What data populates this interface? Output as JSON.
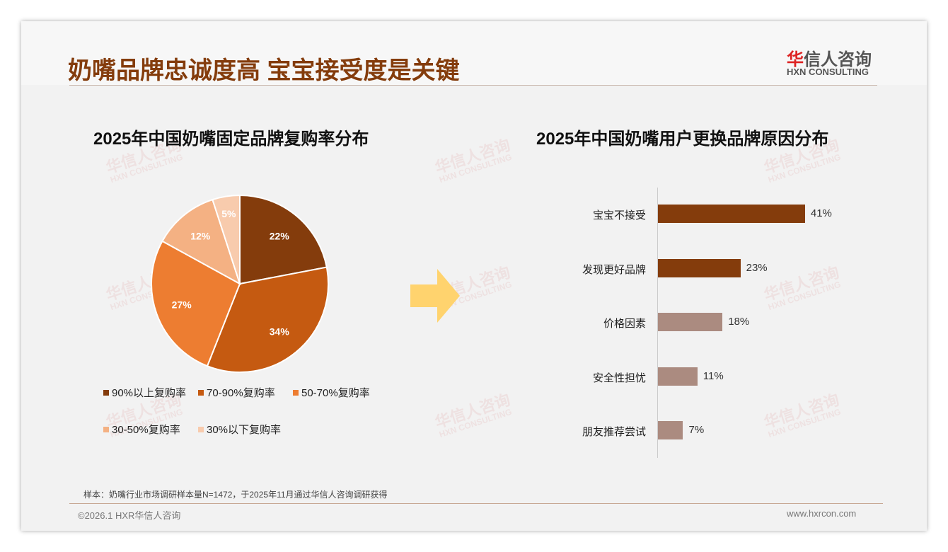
{
  "header": {
    "title": "奶嘴品牌忠诚度高 宝宝接受度是关键",
    "logo_cn": "华信人咨询",
    "logo_cn_accent": "华",
    "logo_cn_rest": "信人咨询",
    "logo_en": "HXN CONSULTING"
  },
  "watermark": {
    "cn": "华信人咨询",
    "en": "HXN CONSULTING"
  },
  "chart_data": [
    {
      "type": "pie",
      "title": "2025年中国奶嘴固定品牌复购率分布",
      "labels": [
        "90%以上复购率",
        "70-90%复购率",
        "50-70%复购率",
        "30-50%复购率",
        "30%以下复购率"
      ],
      "values": [
        22,
        34,
        27,
        12,
        5
      ],
      "value_labels": [
        "22%",
        "34%",
        "27%",
        "12%",
        "5%"
      ],
      "colors": [
        "#843C0C",
        "#C55A11",
        "#ED7D31",
        "#F4B183",
        "#F8CBAD"
      ],
      "legend_position": "bottom"
    },
    {
      "type": "bar",
      "orientation": "horizontal",
      "title": "2025年中国奶嘴用户更换品牌原因分布",
      "categories": [
        "宝宝不接受",
        "发现更好品牌",
        "价格因素",
        "安全性担忧",
        "朋友推荐尝试"
      ],
      "values": [
        41,
        23,
        18,
        11,
        7
      ],
      "value_labels": [
        "41%",
        "23%",
        "18%",
        "11%",
        "7%"
      ],
      "colors": [
        "#843C0C",
        "#843C0C",
        "#AB8B80",
        "#AB8B80",
        "#AB8B80"
      ]
    }
  ],
  "footer": {
    "note": "样本：奶嘴行业市场调研样本量N=1472，于2025年11月通过华信人咨询调研获得",
    "copyright": "©2026.1 HXR华信人咨询",
    "url": "www.hxrcon.com"
  }
}
